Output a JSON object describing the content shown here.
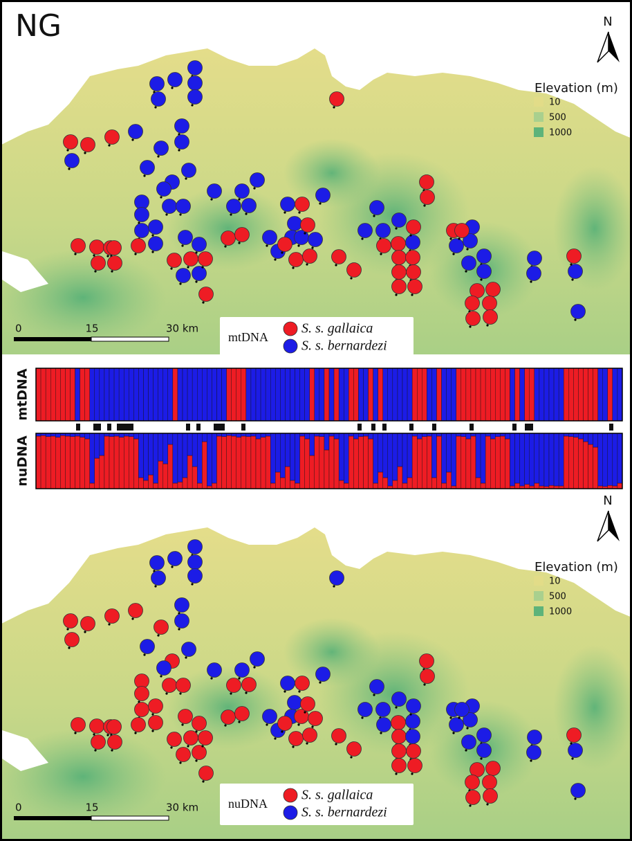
{
  "colors": {
    "gallaica": "#ee1c24",
    "bernardezi": "#1c1ce6"
  },
  "map_top": {
    "panel_label": "NG",
    "north": "N",
    "elevation_legend": {
      "title": "Elevation (m)",
      "items": [
        "10",
        "500",
        "1000"
      ]
    },
    "scale_bar": [
      "0",
      "15",
      "30 km"
    ],
    "marker_legend": {
      "title": "mtDNA",
      "items": [
        "S. s. gallaica",
        "S. s. bernardezi"
      ]
    }
  },
  "structure_plot": {
    "labels": [
      "mtDNA",
      "nuDNA"
    ],
    "mtDNA_gallaica": [
      1,
      1,
      1,
      1,
      1,
      1,
      1,
      1,
      0,
      1,
      1,
      0,
      0,
      0,
      0,
      0,
      0,
      0,
      0,
      0,
      0,
      0,
      0,
      0,
      0,
      0,
      0,
      0,
      1,
      0,
      0,
      0,
      0,
      0,
      0,
      0,
      0,
      0,
      0,
      1,
      1,
      1,
      1,
      0,
      0,
      0,
      0,
      0,
      0,
      0,
      0,
      0,
      0,
      0,
      0,
      0,
      1,
      0,
      0,
      1,
      0,
      1,
      0,
      0,
      1,
      1,
      0,
      0,
      1,
      0,
      1,
      0,
      0,
      0,
      0,
      0,
      0,
      1,
      1,
      1,
      0,
      0,
      1,
      0,
      0,
      0,
      1,
      1,
      1,
      1,
      1,
      1,
      1,
      1,
      1,
      1,
      1,
      0,
      1,
      0,
      1,
      1,
      0,
      0,
      0,
      0,
      0,
      0,
      1,
      1,
      1,
      1,
      1,
      1,
      1,
      0,
      0,
      1,
      0,
      0
    ],
    "nuDNA_gallaica_fraction": [
      0.95,
      0.96,
      0.94,
      0.95,
      0.93,
      0.96,
      0.95,
      0.94,
      0.95,
      0.93,
      0.9,
      0.1,
      0.55,
      0.6,
      0.95,
      0.94,
      0.95,
      0.93,
      0.95,
      0.94,
      0.9,
      0.2,
      0.15,
      0.25,
      0.1,
      0.5,
      0.45,
      0.8,
      0.1,
      0.12,
      0.2,
      0.6,
      0.4,
      0.1,
      0.85,
      0.05,
      0.1,
      0.95,
      0.94,
      0.96,
      0.95,
      0.93,
      0.95,
      0.94,
      0.95,
      0.9,
      0.93,
      0.95,
      0.1,
      0.3,
      0.2,
      0.4,
      0.15,
      0.1,
      0.95,
      0.9,
      0.6,
      0.95,
      0.94,
      0.7,
      0.95,
      0.9,
      0.15,
      0.1,
      0.95,
      0.9,
      0.94,
      0.95,
      0.9,
      0.1,
      0.3,
      0.2,
      0.05,
      0.15,
      0.4,
      0.1,
      0.2,
      0.95,
      0.9,
      0.94,
      0.95,
      0.2,
      0.95,
      0.1,
      0.3,
      0.05,
      0.95,
      0.94,
      0.9,
      0.95,
      0.2,
      0.1,
      0.95,
      0.9,
      0.94,
      0.95,
      0.9,
      0.05,
      0.1,
      0.05,
      0.08,
      0.05,
      0.1,
      0.05,
      0.04,
      0.06,
      0.05,
      0.05,
      0.95,
      0.94,
      0.93,
      0.9,
      0.85,
      0.8,
      0.75,
      0.05,
      0.04,
      0.06,
      0.05,
      0.1
    ]
  },
  "map_bottom": {
    "north": "N",
    "elevation_legend": {
      "title": "Elevation (m)",
      "items": [
        "10",
        "500",
        "1000"
      ]
    },
    "scale_bar": [
      "0",
      "15",
      "30 km"
    ],
    "marker_legend": {
      "title": "nuDNA",
      "items": [
        "S. s. gallaica",
        "S. s. bernardezi"
      ]
    }
  }
}
